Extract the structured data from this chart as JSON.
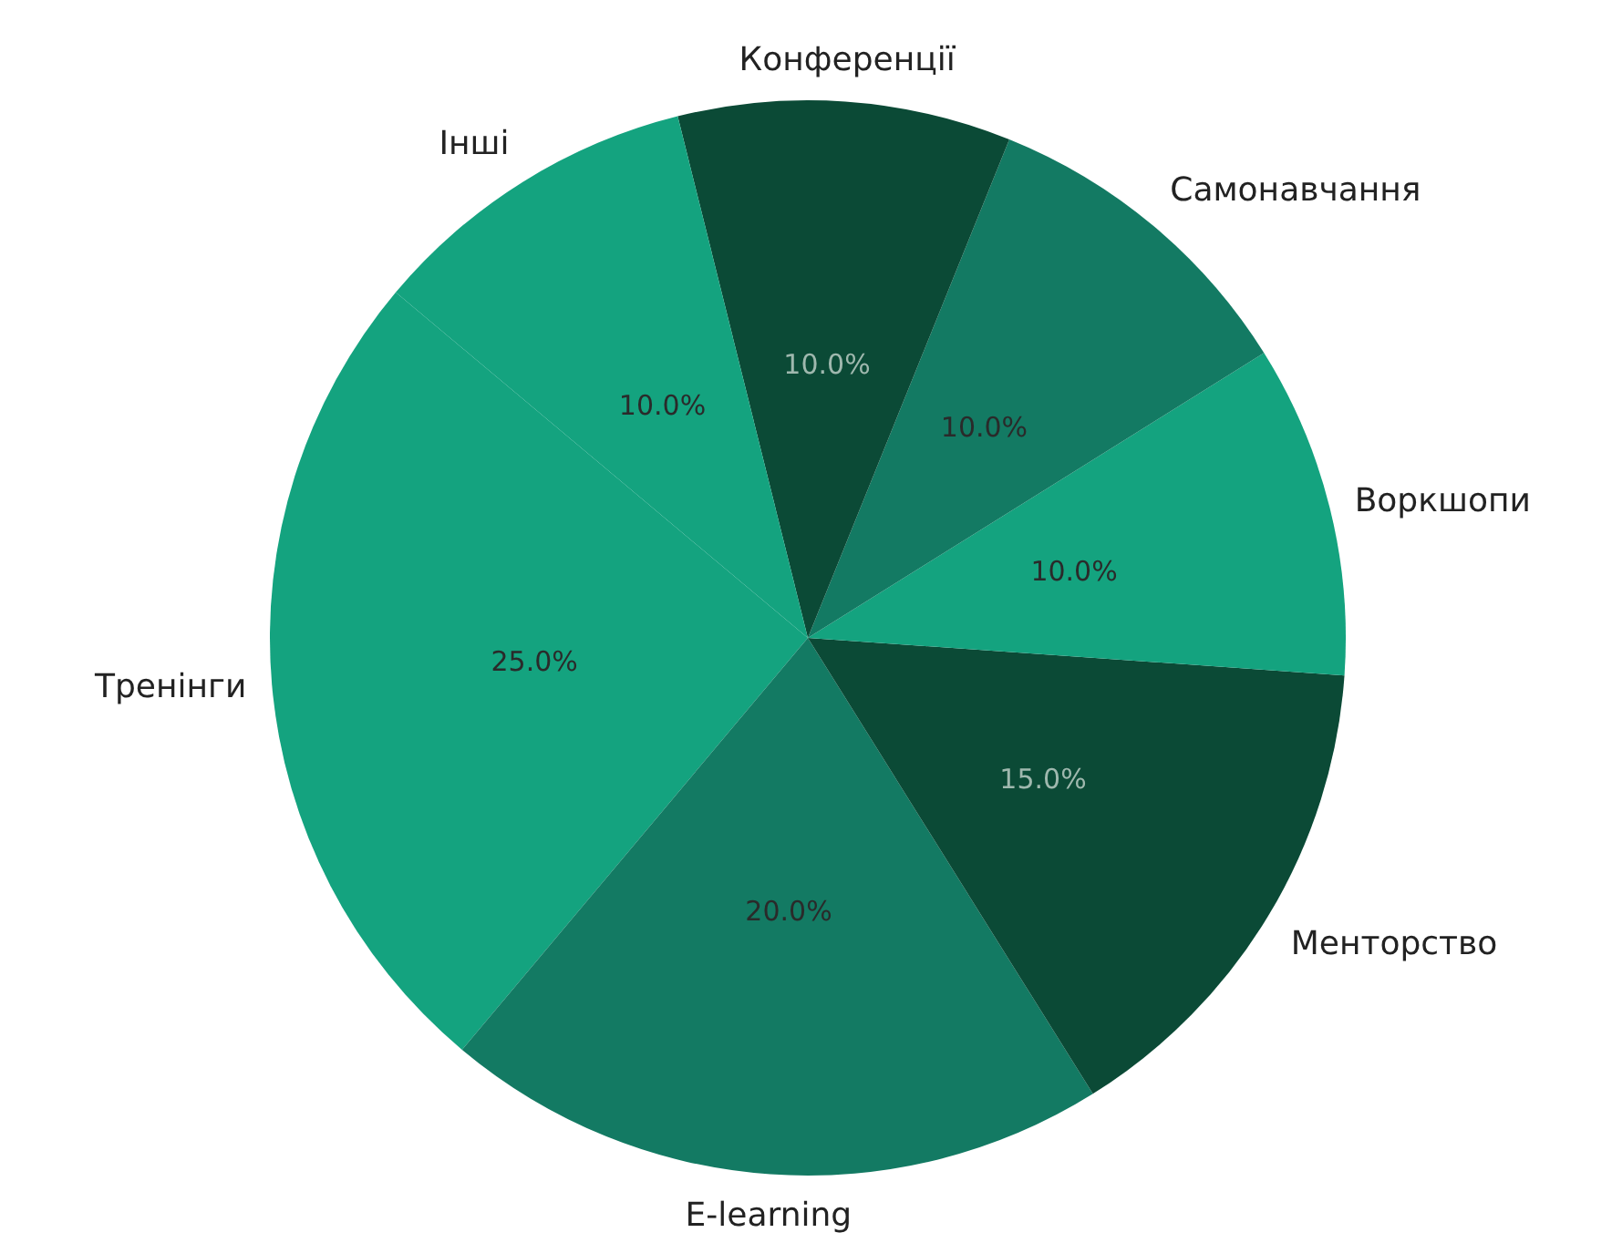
{
  "chart_data": {
    "type": "pie",
    "categories": [
      "Тренінги",
      "E-learning",
      "Менторство",
      "Воркшопи",
      "Самонавчання",
      "Конференції",
      "Інші"
    ],
    "values": [
      25,
      20,
      15,
      10,
      10,
      10,
      10
    ],
    "colors": [
      "#14a37f",
      "#137a63",
      "#0b4a36",
      "#14a37f",
      "#137a63",
      "#0b4a36",
      "#14a37f"
    ],
    "value_labels": [
      "25.0%",
      "20.0%",
      "15.0%",
      "10.0%",
      "10.0%",
      "10.0%",
      "10.0%"
    ]
  }
}
